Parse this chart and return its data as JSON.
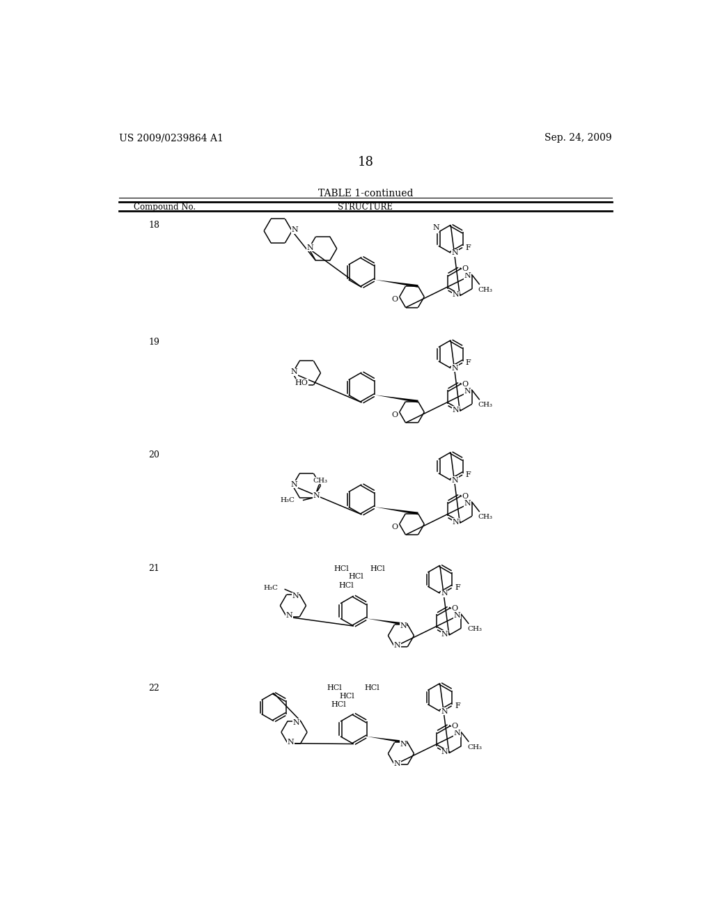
{
  "background_color": "#ffffff",
  "header_left": "US 2009/0239864 A1",
  "header_right": "Sep. 24, 2009",
  "page_number": "18",
  "table_title": "TABLE 1-continued",
  "col1_header": "Compound No.",
  "col2_header": "STRUCTURE"
}
